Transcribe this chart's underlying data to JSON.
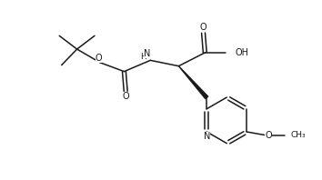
{
  "background_color": "#ffffff",
  "figsize": [
    3.54,
    1.98
  ],
  "dpi": 100,
  "line_color": "#1a1a1a",
  "line_width": 1.1,
  "font_size": 7.0,
  "xlim": [
    0,
    10
  ],
  "ylim": [
    0,
    5.6
  ]
}
